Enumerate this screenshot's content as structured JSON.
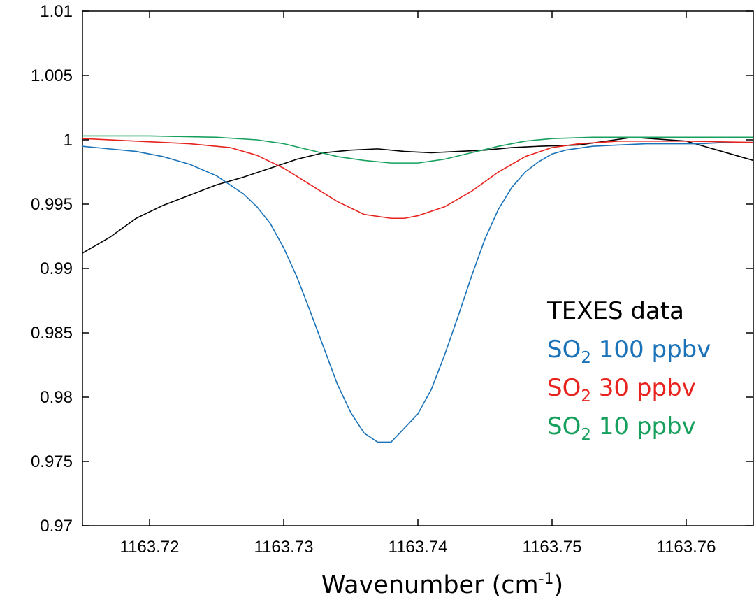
{
  "chart_data": {
    "type": "line",
    "title": "",
    "xlabel": "Wavenumber (cm",
    "xlabel_superscript": "-1",
    "xlabel_suffix": ")",
    "ylabel": "",
    "xlim": [
      1163.715,
      1163.765
    ],
    "ylim": [
      0.97,
      1.01
    ],
    "grid": false,
    "legend_position": "right-middle",
    "x_ticks": [
      1163.72,
      1163.73,
      1163.74,
      1163.75,
      1163.76
    ],
    "x_tick_labels": [
      "1163.72",
      "1163.73",
      "1163.74",
      "1163.75",
      "1163.76"
    ],
    "y_ticks": [
      0.97,
      0.975,
      0.98,
      0.985,
      0.99,
      0.995,
      1.0,
      1.005,
      1.01
    ],
    "y_tick_labels": [
      "0.97",
      "0.975",
      "0.98",
      "0.985",
      "0.99",
      "0.995",
      "1",
      "1.005",
      "1.01"
    ],
    "legend": [
      {
        "text": "TEXES data",
        "color": "#000000"
      },
      {
        "prefix": "SO",
        "sub": "2",
        "text": " 100 ppbv",
        "color": "#1a72b8"
      },
      {
        "prefix": "SO",
        "sub": "2",
        "text": " 30 ppbv",
        "color": "#e8231d"
      },
      {
        "prefix": "SO",
        "sub": "2",
        "text": " 10 ppbv",
        "color": "#17a05d"
      }
    ],
    "series": [
      {
        "color": "#000000",
        "x": [
          1163.715,
          1163.717,
          1163.719,
          1163.721,
          1163.723,
          1163.725,
          1163.727,
          1163.729,
          1163.731,
          1163.733,
          1163.735,
          1163.737,
          1163.739,
          1163.741,
          1163.743,
          1163.745,
          1163.747,
          1163.749,
          1163.752,
          1163.756,
          1163.76,
          1163.765
        ],
        "values": [
          0.9912,
          0.9924,
          0.9939,
          0.9949,
          0.9957,
          0.9965,
          0.9971,
          0.9978,
          0.9985,
          0.999,
          0.9992,
          0.9993,
          0.9991,
          0.999,
          0.9991,
          0.9992,
          0.9994,
          0.9995,
          0.9996,
          1.0002,
          0.9999,
          0.9984
        ]
      },
      {
        "color": "#1a72b8",
        "x": [
          1163.715,
          1163.717,
          1163.719,
          1163.721,
          1163.723,
          1163.725,
          1163.727,
          1163.728,
          1163.729,
          1163.73,
          1163.731,
          1163.732,
          1163.733,
          1163.734,
          1163.735,
          1163.736,
          1163.737,
          1163.738,
          1163.739,
          1163.74,
          1163.741,
          1163.742,
          1163.743,
          1163.744,
          1163.745,
          1163.746,
          1163.747,
          1163.748,
          1163.749,
          1163.75,
          1163.751,
          1163.753,
          1163.755,
          1163.757,
          1163.759,
          1163.761,
          1163.763,
          1163.765
        ],
        "values": [
          0.9995,
          0.9993,
          0.9991,
          0.9987,
          0.9981,
          0.9972,
          0.9958,
          0.9948,
          0.9935,
          0.9916,
          0.9893,
          0.9866,
          0.9838,
          0.981,
          0.9788,
          0.9772,
          0.9765,
          0.9765,
          0.9776,
          0.9787,
          0.9806,
          0.9833,
          0.9863,
          0.9894,
          0.9923,
          0.9946,
          0.9963,
          0.9975,
          0.9983,
          0.9989,
          0.9992,
          0.9995,
          0.9996,
          0.9997,
          0.9997,
          0.9997,
          0.9998,
          0.9998
        ]
      },
      {
        "color": "#e8231d",
        "x": [
          1163.715,
          1163.719,
          1163.723,
          1163.726,
          1163.728,
          1163.73,
          1163.732,
          1163.734,
          1163.736,
          1163.738,
          1163.739,
          1163.74,
          1163.742,
          1163.744,
          1163.746,
          1163.748,
          1163.75,
          1163.752,
          1163.755,
          1163.76,
          1163.765
        ],
        "values": [
          1.0001,
          0.9999,
          0.9997,
          0.9994,
          0.9988,
          0.9978,
          0.9965,
          0.9952,
          0.9942,
          0.9939,
          0.9939,
          0.9941,
          0.9948,
          0.996,
          0.9975,
          0.9987,
          0.9994,
          0.9997,
          0.9999,
          0.9999,
          0.9998
        ]
      },
      {
        "color": "#17a05d",
        "x": [
          1163.715,
          1163.72,
          1163.725,
          1163.728,
          1163.73,
          1163.732,
          1163.734,
          1163.736,
          1163.738,
          1163.739,
          1163.74,
          1163.742,
          1163.744,
          1163.746,
          1163.748,
          1163.75,
          1163.753,
          1163.758,
          1163.765
        ],
        "values": [
          1.0003,
          1.0003,
          1.0002,
          1.0,
          0.9997,
          0.9992,
          0.9987,
          0.9984,
          0.9982,
          0.9982,
          0.9982,
          0.9985,
          0.999,
          0.9995,
          0.9999,
          1.0001,
          1.0002,
          1.0002,
          1.0002
        ]
      }
    ]
  }
}
